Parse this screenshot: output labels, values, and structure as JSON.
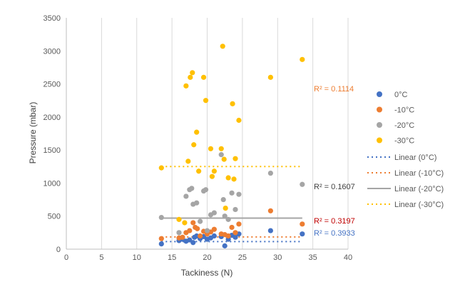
{
  "chart_data": {
    "type": "scatter",
    "xlabel": "Tackiness (N)",
    "ylabel": "Pressure (mbar)",
    "xlim": [
      0,
      40
    ],
    "ylim": [
      0,
      3500
    ],
    "xticks": [
      "0",
      "5",
      "10",
      "15",
      "20",
      "25",
      "30",
      "35",
      "40"
    ],
    "yticks": [
      "0",
      "500",
      "1000",
      "1500",
      "2000",
      "2500",
      "3000",
      "3500"
    ],
    "grid": "vertical",
    "legend": "right",
    "series": [
      {
        "name": "0°C",
        "color": "#4472C4",
        "points": [
          [
            13.5,
            80
          ],
          [
            16,
            130
          ],
          [
            16.5,
            150
          ],
          [
            17,
            120
          ],
          [
            17.5,
            140
          ],
          [
            18,
            100
          ],
          [
            18.2,
            180
          ],
          [
            18.5,
            200
          ],
          [
            19,
            160
          ],
          [
            19.5,
            190
          ],
          [
            20,
            150
          ],
          [
            20.5,
            170
          ],
          [
            21,
            200
          ],
          [
            22,
            190
          ],
          [
            22.5,
            50
          ],
          [
            23,
            150
          ],
          [
            23.5,
            210
          ],
          [
            24,
            180
          ],
          [
            24.5,
            230
          ],
          [
            29,
            280
          ],
          [
            33.5,
            230
          ]
        ],
        "fit": {
          "name": "Linear (0°C)",
          "y": 115,
          "dash": "dot",
          "r2": "R² = 0.3933",
          "r2_color": "#4472C4"
        }
      },
      {
        "name": "-10°C",
        "color": "#ED7D31",
        "points": [
          [
            13.5,
            160
          ],
          [
            16,
            170
          ],
          [
            16.5,
            180
          ],
          [
            17,
            250
          ],
          [
            17.5,
            280
          ],
          [
            18,
            400
          ],
          [
            18.3,
            330
          ],
          [
            18.6,
            310
          ],
          [
            19,
            200
          ],
          [
            19.5,
            270
          ],
          [
            20,
            230
          ],
          [
            20.5,
            260
          ],
          [
            21,
            300
          ],
          [
            22,
            230
          ],
          [
            22.5,
            220
          ],
          [
            23,
            200
          ],
          [
            23.5,
            330
          ],
          [
            24,
            250
          ],
          [
            24.5,
            380
          ],
          [
            29,
            580
          ],
          [
            33.5,
            380
          ]
        ],
        "fit": {
          "name": "Linear (-10°C)",
          "y": 185,
          "dash": "dot",
          "r2": "R² = 0.3197",
          "r2_color": "#C00000"
        }
      },
      {
        "name": "-20°C",
        "color": "#A5A5A5",
        "points": [
          [
            13.5,
            480
          ],
          [
            16,
            250
          ],
          [
            17,
            800
          ],
          [
            17.5,
            900
          ],
          [
            17.8,
            920
          ],
          [
            18,
            680
          ],
          [
            18.5,
            700
          ],
          [
            19,
            420
          ],
          [
            19.5,
            880
          ],
          [
            19.8,
            900
          ],
          [
            20,
            280
          ],
          [
            20.5,
            520
          ],
          [
            21,
            550
          ],
          [
            22,
            1430
          ],
          [
            22.3,
            750
          ],
          [
            22.5,
            500
          ],
          [
            23,
            450
          ],
          [
            23.5,
            850
          ],
          [
            24,
            600
          ],
          [
            24.5,
            830
          ],
          [
            29,
            1150
          ],
          [
            33.5,
            980
          ]
        ],
        "fit": {
          "name": "Linear (-20°C)",
          "y": 470,
          "dash": "solid",
          "r2": "R² = 0.1607",
          "r2_color": "#404040"
        }
      },
      {
        "name": "-30°C",
        "color": "#FFC000",
        "points": [
          [
            13.5,
            1230
          ],
          [
            16,
            450
          ],
          [
            16.8,
            400
          ],
          [
            17,
            2470
          ],
          [
            17.3,
            1330
          ],
          [
            17.6,
            2600
          ],
          [
            17.9,
            2670
          ],
          [
            18.1,
            1580
          ],
          [
            18.5,
            1770
          ],
          [
            18.8,
            1180
          ],
          [
            19.5,
            2600
          ],
          [
            19.8,
            2250
          ],
          [
            20.5,
            1520
          ],
          [
            20.7,
            1100
          ],
          [
            21,
            1180
          ],
          [
            22,
            1520
          ],
          [
            22.2,
            3070
          ],
          [
            22.4,
            1360
          ],
          [
            22.6,
            620
          ],
          [
            23,
            1080
          ],
          [
            23.6,
            2200
          ],
          [
            23.8,
            1060
          ],
          [
            24,
            1370
          ],
          [
            24.5,
            1950
          ],
          [
            29,
            2600
          ],
          [
            33.5,
            2870
          ]
        ],
        "fit": {
          "name": "Linear (-30°C)",
          "y": 1250,
          "dash": "dot",
          "r2": "R² = 0.1114",
          "r2_color": "#ED7D31"
        }
      }
    ]
  }
}
